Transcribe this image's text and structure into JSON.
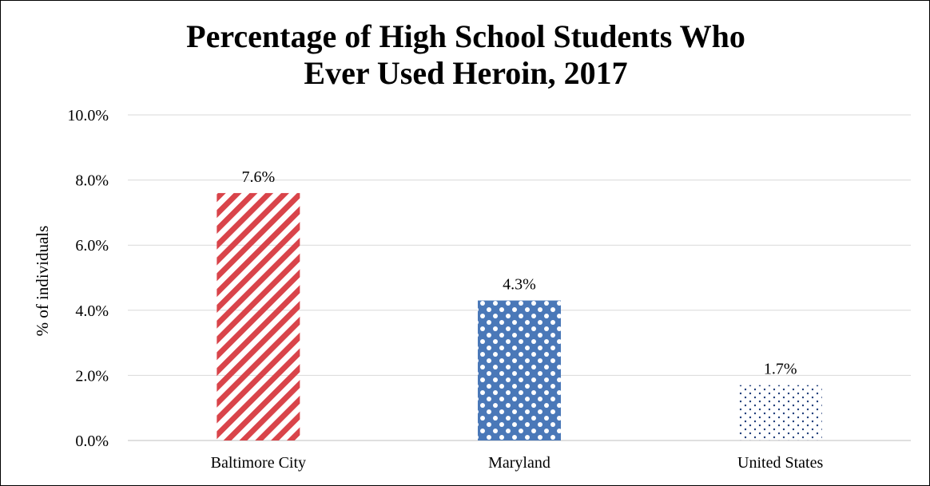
{
  "chart_data": {
    "type": "bar",
    "title_lines": [
      "Percentage of High School Students Who",
      "Ever Used Heroin, 2017"
    ],
    "categories": [
      "Baltimore City",
      "Maryland",
      "United States"
    ],
    "values": [
      7.6,
      4.3,
      1.7
    ],
    "data_labels": [
      "7.6%",
      "4.3%",
      "1.7%"
    ],
    "ylabel": "% of individuals",
    "xlabel": "",
    "ylim": [
      0,
      10
    ],
    "yticks": [
      0,
      2,
      4,
      6,
      8,
      10
    ],
    "ytick_labels": [
      "0.0%",
      "2.0%",
      "4.0%",
      "6.0%",
      "8.0%",
      "10.0%"
    ],
    "grid": true,
    "legend": "none",
    "bar_styles": [
      {
        "pattern": "diagonal-stripes",
        "color": "#d9444a"
      },
      {
        "pattern": "checker-dots",
        "color": "#4a78b8"
      },
      {
        "pattern": "sparse-dots",
        "color": "#1f3d7a"
      }
    ],
    "gridline_color": "#d9d9d9",
    "axis_color": "#bfbfbf"
  }
}
